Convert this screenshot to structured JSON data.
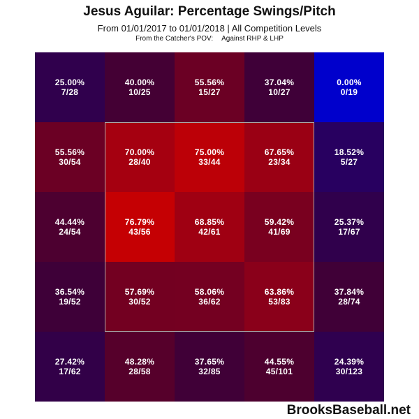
{
  "chart_data": {
    "type": "heatmap",
    "title": "Jesus Aguilar: Percentage Swings/Pitch",
    "subtitle": "From 01/01/2017 to 01/01/2018 | All Competition Levels",
    "subtitle2_left": "From the Catcher's POV:",
    "subtitle2_right": "Against RHP & LHP",
    "rows": 5,
    "cols": 5,
    "strike_zone": "center 3x3",
    "colors": {
      "low": "#0000cc",
      "high": "#cc0000",
      "zone_border": "#aaaaaa",
      "text": "#ffffff"
    },
    "cells": [
      [
        {
          "pct": "25.00%",
          "count": "7/28",
          "value": 25.0
        },
        {
          "pct": "40.00%",
          "count": "10/25",
          "value": 40.0
        },
        {
          "pct": "55.56%",
          "count": "15/27",
          "value": 55.56
        },
        {
          "pct": "37.04%",
          "count": "10/27",
          "value": 37.04
        },
        {
          "pct": "0.00%",
          "count": "0/19",
          "value": 0.0
        }
      ],
      [
        {
          "pct": "55.56%",
          "count": "30/54",
          "value": 55.56
        },
        {
          "pct": "70.00%",
          "count": "28/40",
          "value": 70.0
        },
        {
          "pct": "75.00%",
          "count": "33/44",
          "value": 75.0
        },
        {
          "pct": "67.65%",
          "count": "23/34",
          "value": 67.65
        },
        {
          "pct": "18.52%",
          "count": "5/27",
          "value": 18.52
        }
      ],
      [
        {
          "pct": "44.44%",
          "count": "24/54",
          "value": 44.44
        },
        {
          "pct": "76.79%",
          "count": "43/56",
          "value": 76.79
        },
        {
          "pct": "68.85%",
          "count": "42/61",
          "value": 68.85
        },
        {
          "pct": "59.42%",
          "count": "41/69",
          "value": 59.42
        },
        {
          "pct": "25.37%",
          "count": "17/67",
          "value": 25.37
        }
      ],
      [
        {
          "pct": "36.54%",
          "count": "19/52",
          "value": 36.54
        },
        {
          "pct": "57.69%",
          "count": "30/52",
          "value": 57.69
        },
        {
          "pct": "58.06%",
          "count": "36/62",
          "value": 58.06
        },
        {
          "pct": "63.86%",
          "count": "53/83",
          "value": 63.86
        },
        {
          "pct": "37.84%",
          "count": "28/74",
          "value": 37.84
        }
      ],
      [
        {
          "pct": "27.42%",
          "count": "17/62",
          "value": 27.42
        },
        {
          "pct": "48.28%",
          "count": "28/58",
          "value": 48.28
        },
        {
          "pct": "37.65%",
          "count": "32/85",
          "value": 37.65
        },
        {
          "pct": "44.55%",
          "count": "45/101",
          "value": 44.55
        },
        {
          "pct": "24.39%",
          "count": "30/123",
          "value": 24.39
        }
      ]
    ]
  },
  "brand": "BrooksBaseball.net"
}
